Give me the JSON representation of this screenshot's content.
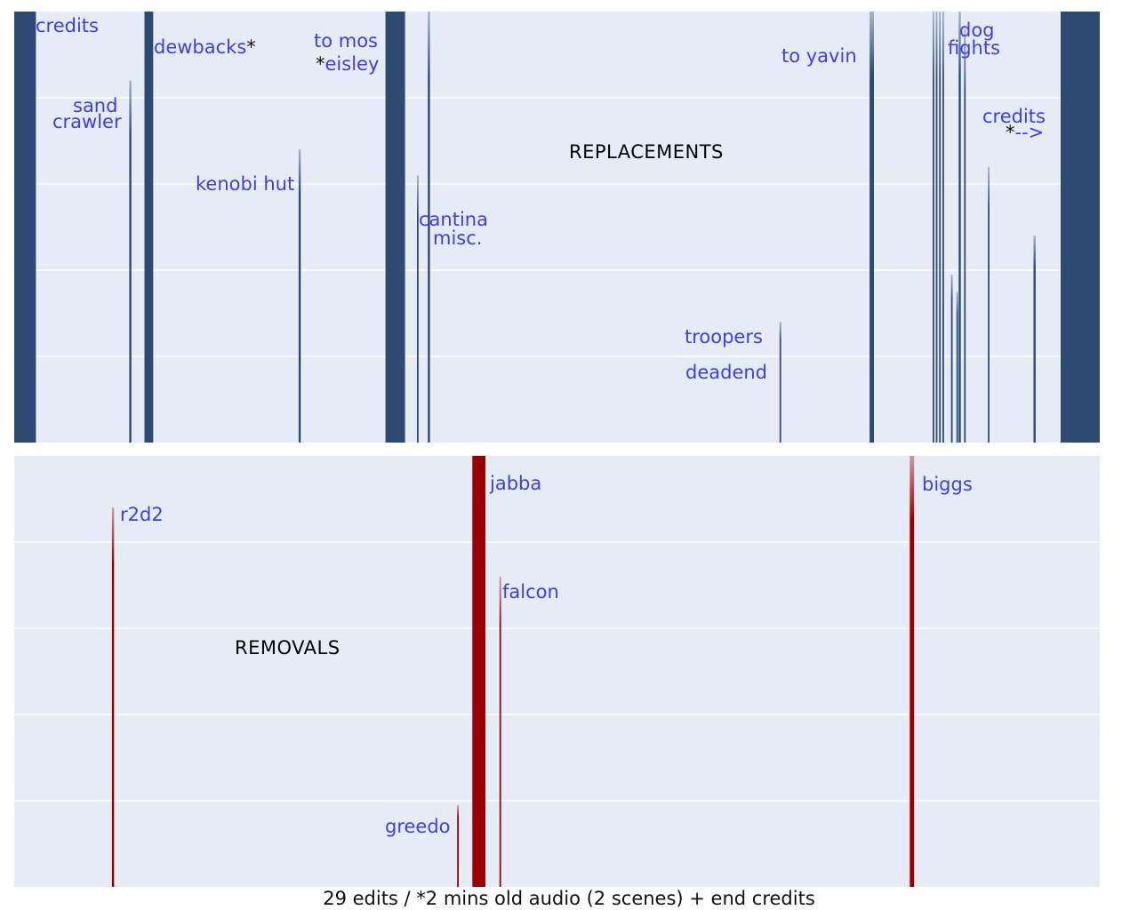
{
  "chart_data": [
    {
      "type": "bar",
      "panel": "replacements",
      "title": "REPLACEMENTS",
      "color": "#2c4a72",
      "ylim": [
        0,
        100
      ],
      "grid": true,
      "bars": [
        {
          "x": 0.0,
          "w": 2.0,
          "h": 100
        },
        {
          "x": 10.6,
          "w": 0.2,
          "h": 84
        },
        {
          "x": 12.0,
          "w": 0.8,
          "h": 100
        },
        {
          "x": 26.2,
          "w": 0.2,
          "h": 68
        },
        {
          "x": 34.2,
          "w": 1.8,
          "h": 100
        },
        {
          "x": 37.1,
          "w": 0.15,
          "h": 62
        },
        {
          "x": 38.1,
          "w": 0.2,
          "h": 100
        },
        {
          "x": 70.5,
          "w": 0.15,
          "h": 28
        },
        {
          "x": 78.8,
          "w": 0.4,
          "h": 100
        },
        {
          "x": 84.6,
          "w": 0.15,
          "h": 100
        },
        {
          "x": 84.9,
          "w": 0.15,
          "h": 100
        },
        {
          "x": 85.2,
          "w": 0.15,
          "h": 100
        },
        {
          "x": 85.5,
          "w": 0.15,
          "h": 100
        },
        {
          "x": 86.3,
          "w": 0.15,
          "h": 39
        },
        {
          "x": 86.8,
          "w": 0.15,
          "h": 35
        },
        {
          "x": 87.0,
          "w": 0.2,
          "h": 100
        },
        {
          "x": 87.5,
          "w": 0.15,
          "h": 96
        },
        {
          "x": 89.7,
          "w": 0.15,
          "h": 64
        },
        {
          "x": 93.9,
          "w": 0.2,
          "h": 48
        },
        {
          "x": 96.4,
          "w": 3.6,
          "h": 100
        }
      ],
      "labels": [
        {
          "lines": [
            "credits"
          ]
        },
        {
          "lines": [
            "sand",
            "crawler"
          ]
        },
        {
          "lines": [
            "dewbacks"
          ],
          "star_after": "*"
        },
        {
          "lines": [
            "kenobi hut"
          ]
        },
        {
          "lines": [
            "to mos"
          ]
        },
        {
          "lines": [
            "eisley"
          ],
          "star_before": "*"
        },
        {
          "lines": [
            "cantina",
            "misc."
          ]
        },
        {
          "lines": [
            "troopers"
          ]
        },
        {
          "lines": [
            "deadend"
          ]
        },
        {
          "lines": [
            "to yavin"
          ]
        },
        {
          "lines": [
            "dog",
            "fights"
          ]
        },
        {
          "lines": [
            "credits"
          ]
        },
        {
          "lines": [
            "-->"
          ],
          "star_before": "*"
        }
      ]
    },
    {
      "type": "bar",
      "panel": "removals",
      "title": "REMOVALS",
      "color": "#990000",
      "ylim": [
        0,
        100
      ],
      "grid": true,
      "bars": [
        {
          "x": 9.0,
          "w": 0.2,
          "h": 88
        },
        {
          "x": 40.8,
          "w": 0.15,
          "h": 19
        },
        {
          "x": 42.2,
          "w": 1.2,
          "h": 100
        },
        {
          "x": 44.7,
          "w": 0.15,
          "h": 72
        },
        {
          "x": 82.5,
          "w": 0.4,
          "h": 100
        }
      ],
      "labels": [
        {
          "lines": [
            "r2d2"
          ]
        },
        {
          "lines": [
            "greedo"
          ]
        },
        {
          "lines": [
            "jabba"
          ]
        },
        {
          "lines": [
            "falcon"
          ]
        },
        {
          "lines": [
            "biggs"
          ]
        }
      ]
    }
  ],
  "footer": {
    "text": "29 edits / *2 mins old audio (2 scenes) + end credits"
  }
}
